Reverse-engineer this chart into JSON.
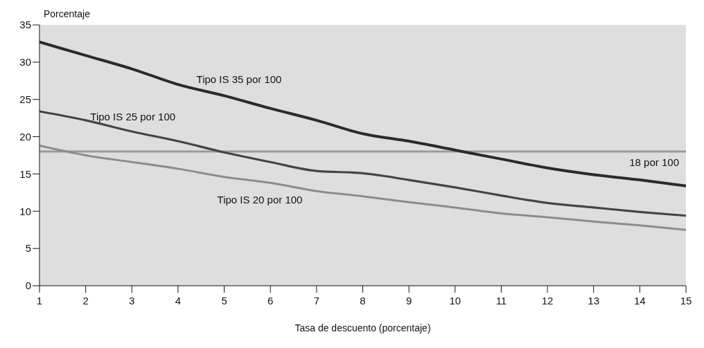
{
  "chart_data": {
    "type": "line",
    "xlabel": "Tasa de descuento (porcentaje)",
    "ylabel": "Porcentaje",
    "x": [
      1,
      2,
      3,
      4,
      5,
      6,
      7,
      8,
      9,
      10,
      11,
      12,
      13,
      14,
      15
    ],
    "series": [
      {
        "name": "Tipo IS 35 por 100",
        "color": "#2a2a2a",
        "values": [
          32.7,
          30.9,
          29.1,
          27.0,
          25.5,
          23.8,
          22.2,
          20.4,
          19.4,
          18.2,
          17.0,
          15.8,
          14.9,
          14.2,
          13.4
        ]
      },
      {
        "name": "Tipo IS 25 por 100",
        "color": "#444444",
        "values": [
          23.4,
          22.2,
          20.7,
          19.4,
          17.9,
          16.6,
          15.4,
          15.1,
          14.2,
          13.2,
          12.1,
          11.1,
          10.5,
          9.9,
          9.4
        ]
      },
      {
        "name": "Tipo IS 20 por 100",
        "color": "#8c8c8c",
        "values": [
          18.8,
          17.5,
          16.6,
          15.7,
          14.6,
          13.8,
          12.7,
          12.0,
          11.2,
          10.5,
          9.7,
          9.2,
          8.6,
          8.1,
          7.5
        ]
      }
    ],
    "ref_lines": [
      {
        "axis": "y",
        "value": 18,
        "label": "18 por 100",
        "color": "#9a9a9a"
      }
    ],
    "xlim": [
      1,
      15
    ],
    "xticks": [
      1,
      2,
      3,
      4,
      5,
      6,
      7,
      8,
      9,
      10,
      11,
      12,
      13,
      14,
      15
    ],
    "ylim": [
      0,
      35
    ],
    "yticks": [
      0,
      5,
      10,
      15,
      20,
      25,
      30,
      35
    ],
    "grid": false,
    "legend": false,
    "marker": "none",
    "line_style": "solid"
  }
}
